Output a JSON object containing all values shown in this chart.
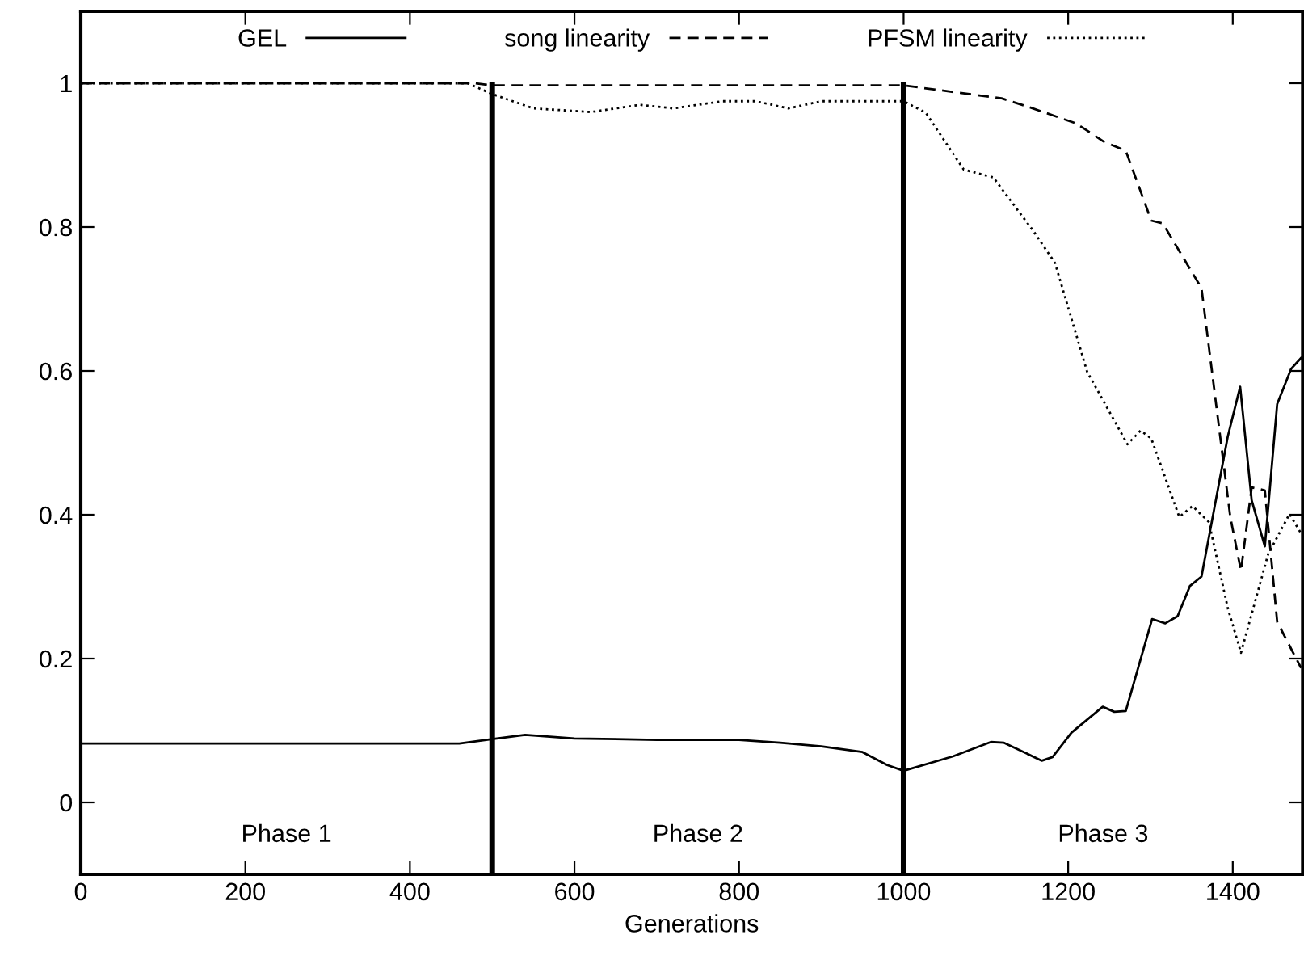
{
  "chart_data": {
    "type": "line",
    "xlabel": "Generations",
    "xlim": [
      0,
      1485
    ],
    "ylim": [
      -0.1,
      1.1
    ],
    "xticks": [
      0,
      200,
      400,
      600,
      800,
      1000,
      1200,
      1400
    ],
    "yticks": [
      0,
      0.2,
      0.4,
      0.6,
      0.8,
      1
    ],
    "legend": "top",
    "grid": false,
    "series": [
      {
        "name": "GEL",
        "color": "#000000",
        "line_style": "solid",
        "x": [
          0,
          460,
          500,
          540,
          600,
          700,
          800,
          850,
          900,
          950,
          980,
          1000,
          1060,
          1106,
          1122,
          1168,
          1181,
          1204,
          1242,
          1256,
          1270,
          1302,
          1318,
          1333,
          1348,
          1362,
          1394,
          1409,
          1423,
          1439,
          1454,
          1471,
          1483
        ],
        "values": [
          0.082,
          0.082,
          0.088,
          0.094,
          0.089,
          0.087,
          0.087,
          0.083,
          0.078,
          0.07,
          0.052,
          0.044,
          0.064,
          0.084,
          0.083,
          0.058,
          0.063,
          0.097,
          0.133,
          0.126,
          0.127,
          0.255,
          0.249,
          0.259,
          0.301,
          0.314,
          0.509,
          0.578,
          0.42,
          0.356,
          0.554,
          0.603,
          0.618
        ]
      },
      {
        "name": "song linearity",
        "color": "#000000",
        "line_style": "dashed",
        "x": [
          0,
          480,
          500,
          1000,
          1119,
          1152,
          1210,
          1243,
          1270,
          1301,
          1315,
          1362,
          1397,
          1410,
          1423,
          1439,
          1454,
          1483
        ],
        "values": [
          1.0,
          1.0,
          0.997,
          0.997,
          0.979,
          0.967,
          0.944,
          0.919,
          0.906,
          0.809,
          0.805,
          0.715,
          0.397,
          0.322,
          0.438,
          0.434,
          0.251,
          0.187
        ]
      },
      {
        "name": "PFSM linearity",
        "color": "#000000",
        "line_style": "dotted",
        "x": [
          0,
          470,
          500,
          550,
          620,
          680,
          720,
          780,
          820,
          860,
          900,
          1000,
          1027,
          1073,
          1109,
          1158,
          1184,
          1223,
          1272,
          1288,
          1301,
          1335,
          1351,
          1371,
          1394,
          1410,
          1443,
          1469,
          1483
        ],
        "values": [
          1.0,
          1.0,
          0.985,
          0.965,
          0.96,
          0.97,
          0.965,
          0.975,
          0.975,
          0.965,
          0.975,
          0.975,
          0.959,
          0.88,
          0.869,
          0.794,
          0.75,
          0.599,
          0.498,
          0.517,
          0.506,
          0.397,
          0.412,
          0.39,
          0.27,
          0.208,
          0.345,
          0.401,
          0.374
        ]
      }
    ],
    "ref_lines": [
      {
        "axis": "x",
        "value": 500,
        "color": "#000000"
      },
      {
        "axis": "x",
        "value": 1000,
        "color": "#000000"
      }
    ],
    "annotations": [
      "Phase 1",
      "Phase 2",
      "Phase 3"
    ]
  }
}
